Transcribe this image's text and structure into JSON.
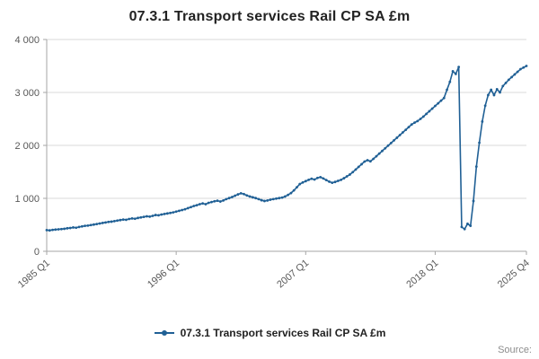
{
  "title": "07.3.1 Transport services Rail CP SA £m",
  "legend": {
    "label": "07.3.1 Transport services Rail CP SA £m"
  },
  "source": "Source:",
  "chart_data": {
    "type": "line",
    "title": "07.3.1 Transport services Rail CP SA £m",
    "series_name": "07.3.1 Transport services Rail CP SA £m",
    "frequency": "quarterly",
    "x_start": "1985 Q1",
    "x_end": "2025 Q4",
    "xlabel": "",
    "ylabel": "",
    "ylim": [
      0,
      4000
    ],
    "grid": true,
    "legend_position": "bottom",
    "line_color": "#206095",
    "axis_color": "#a6a6a6",
    "grid_color": "#d9d9d9",
    "tick_label_color": "#595959",
    "y_ticks": [
      {
        "value": 0,
        "label": "0"
      },
      {
        "value": 1000,
        "label": "1 000"
      },
      {
        "value": 2000,
        "label": "2 000"
      },
      {
        "value": 3000,
        "label": "3 000"
      },
      {
        "value": 4000,
        "label": "4 000"
      }
    ],
    "x_ticks": [
      {
        "index": 0,
        "label": "1985 Q1"
      },
      {
        "index": 44,
        "label": "1996 Q1"
      },
      {
        "index": 88,
        "label": "2007 Q1"
      },
      {
        "index": 132,
        "label": "2018 Q1"
      },
      {
        "index": 163,
        "label": "2025 Q4"
      }
    ],
    "values": [
      400,
      395,
      405,
      410,
      415,
      420,
      425,
      435,
      440,
      450,
      445,
      460,
      470,
      480,
      485,
      495,
      505,
      515,
      525,
      535,
      545,
      555,
      560,
      570,
      580,
      590,
      600,
      595,
      610,
      620,
      615,
      630,
      640,
      650,
      660,
      655,
      670,
      685,
      680,
      695,
      705,
      715,
      725,
      735,
      750,
      765,
      780,
      795,
      815,
      835,
      855,
      870,
      890,
      905,
      890,
      915,
      930,
      945,
      955,
      940,
      960,
      985,
      1005,
      1025,
      1050,
      1075,
      1095,
      1080,
      1055,
      1035,
      1020,
      1005,
      985,
      965,
      950,
      960,
      975,
      985,
      995,
      1005,
      1015,
      1035,
      1065,
      1100,
      1150,
      1210,
      1270,
      1300,
      1325,
      1350,
      1370,
      1355,
      1385,
      1400,
      1375,
      1345,
      1315,
      1295,
      1310,
      1330,
      1350,
      1380,
      1415,
      1450,
      1495,
      1545,
      1595,
      1645,
      1695,
      1720,
      1700,
      1745,
      1795,
      1845,
      1895,
      1945,
      1995,
      2045,
      2095,
      2145,
      2195,
      2245,
      2295,
      2345,
      2395,
      2430,
      2460,
      2500,
      2545,
      2595,
      2645,
      2695,
      2745,
      2795,
      2845,
      2895,
      3050,
      3200,
      3400,
      3350,
      3480,
      460,
      420,
      520,
      480,
      950,
      1600,
      2050,
      2450,
      2750,
      2950,
      3050,
      2950,
      3060,
      3000,
      3120,
      3180,
      3240,
      3290,
      3340,
      3390,
      3440,
      3470,
      3500
    ]
  }
}
